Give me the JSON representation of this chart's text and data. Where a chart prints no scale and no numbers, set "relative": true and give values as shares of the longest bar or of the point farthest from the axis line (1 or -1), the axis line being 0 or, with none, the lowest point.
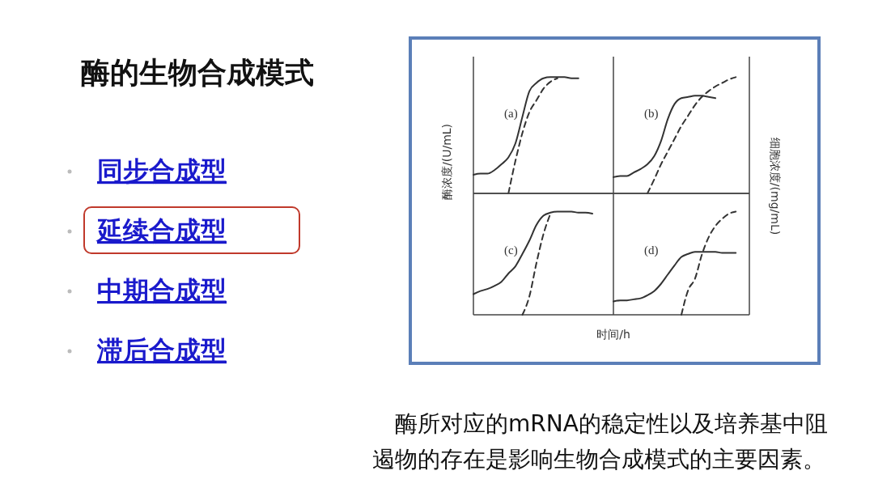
{
  "chart_data": [
    {
      "type": "other",
      "title": "酶的生物合成模式",
      "categories": [
        "同步合成型",
        "延续合成型",
        "中期合成型",
        "滞后合成型"
      ],
      "annotations": [
        "酶所对应的mRNA的稳定性以及培养基中阻遏物的存在是影响生物合成模式的主要因素。"
      ]
    },
    {
      "type": "line",
      "title": "(a)",
      "ylabel": "酶浓度/(U/mL)",
      "relative": true,
      "categories": [
        null,
        null,
        null,
        null,
        null,
        null,
        null,
        null,
        null,
        null,
        null,
        null,
        null,
        null,
        null,
        null,
        null,
        null,
        null,
        null,
        null
      ],
      "series": [
        {
          "color": "#333333",
          "line_style": "solid",
          "values": [
            0.16,
            0.17,
            0.17,
            0.2,
            0.25,
            0.31,
            0.43,
            0.66,
            0.88,
            0.95,
            0.99,
            1,
            1,
            1,
            0.99,
            0.99,
            null,
            null,
            null,
            null,
            null
          ]
        },
        {
          "color": "#333333",
          "line_style": "dashed",
          "values": [
            null,
            null,
            null,
            null,
            null,
            0,
            0.28,
            0.52,
            0.7,
            0.8,
            0.9,
            0.96,
            0.99,
            null,
            null,
            null,
            null,
            null,
            null,
            null,
            null
          ]
        }
      ]
    },
    {
      "type": "line",
      "title": "(b)",
      "y2label": "细胞浓度/(mg/mL)",
      "relative": true,
      "categories": [
        null,
        null,
        null,
        null,
        null,
        null,
        null,
        null,
        null,
        null,
        null,
        null,
        null,
        null,
        null,
        null,
        null,
        null,
        null,
        null,
        null
      ],
      "series": [
        {
          "color": "#333333",
          "line_style": "solid",
          "values": [
            0.14,
            0.15,
            0.15,
            0.18,
            0.21,
            0.25,
            0.32,
            0.45,
            0.64,
            0.77,
            0.82,
            0.83,
            0.84,
            0.84,
            0.83,
            0.82,
            null,
            null,
            null,
            null,
            null
          ]
        },
        {
          "color": "#333333",
          "line_style": "dashed",
          "values": [
            null,
            null,
            null,
            null,
            null,
            0,
            0.12,
            0.25,
            0.36,
            0.47,
            0.58,
            0.67,
            0.76,
            0.83,
            0.88,
            0.92,
            0.95,
            0.98,
            1,
            null,
            null
          ]
        }
      ]
    },
    {
      "type": "line",
      "title": "(c)",
      "xlabel": "时间/h",
      "relative": true,
      "categories": [
        null,
        null,
        null,
        null,
        null,
        null,
        null,
        null,
        null,
        null,
        null,
        null,
        null,
        null,
        null,
        null,
        null,
        null,
        null,
        null,
        null
      ],
      "series": [
        {
          "color": "#333333",
          "line_style": "solid",
          "values": [
            0.2,
            0.23,
            0.25,
            0.28,
            0.32,
            0.4,
            0.47,
            0.59,
            0.72,
            0.87,
            0.96,
            0.99,
            1,
            1,
            1,
            0.99,
            0.99,
            0.98,
            null,
            null,
            null
          ]
        },
        {
          "color": "#333333",
          "line_style": "dashed",
          "values": [
            null,
            null,
            null,
            null,
            null,
            null,
            null,
            0,
            0.18,
            0.5,
            0.78,
            0.98,
            null,
            null,
            null,
            null,
            null,
            null,
            null,
            null,
            null
          ]
        }
      ]
    },
    {
      "type": "line",
      "title": "(d)",
      "relative": true,
      "categories": [
        null,
        null,
        null,
        null,
        null,
        null,
        null,
        null,
        null,
        null,
        null,
        null,
        null,
        null,
        null,
        null,
        null,
        null,
        null,
        null,
        null
      ],
      "series": [
        {
          "color": "#333333",
          "line_style": "solid",
          "values": [
            0.13,
            0.14,
            0.14,
            0.15,
            0.16,
            0.19,
            0.23,
            0.3,
            0.39,
            0.48,
            0.56,
            0.59,
            0.61,
            0.61,
            0.61,
            0.61,
            0.6,
            0.6,
            0.6,
            null,
            null
          ]
        },
        {
          "color": "#333333",
          "line_style": "dashed",
          "values": [
            null,
            null,
            null,
            null,
            null,
            null,
            null,
            null,
            null,
            null,
            0,
            0.24,
            0.35,
            0.58,
            0.75,
            0.86,
            0.93,
            0.98,
            1,
            null,
            null
          ]
        }
      ]
    }
  ]
}
